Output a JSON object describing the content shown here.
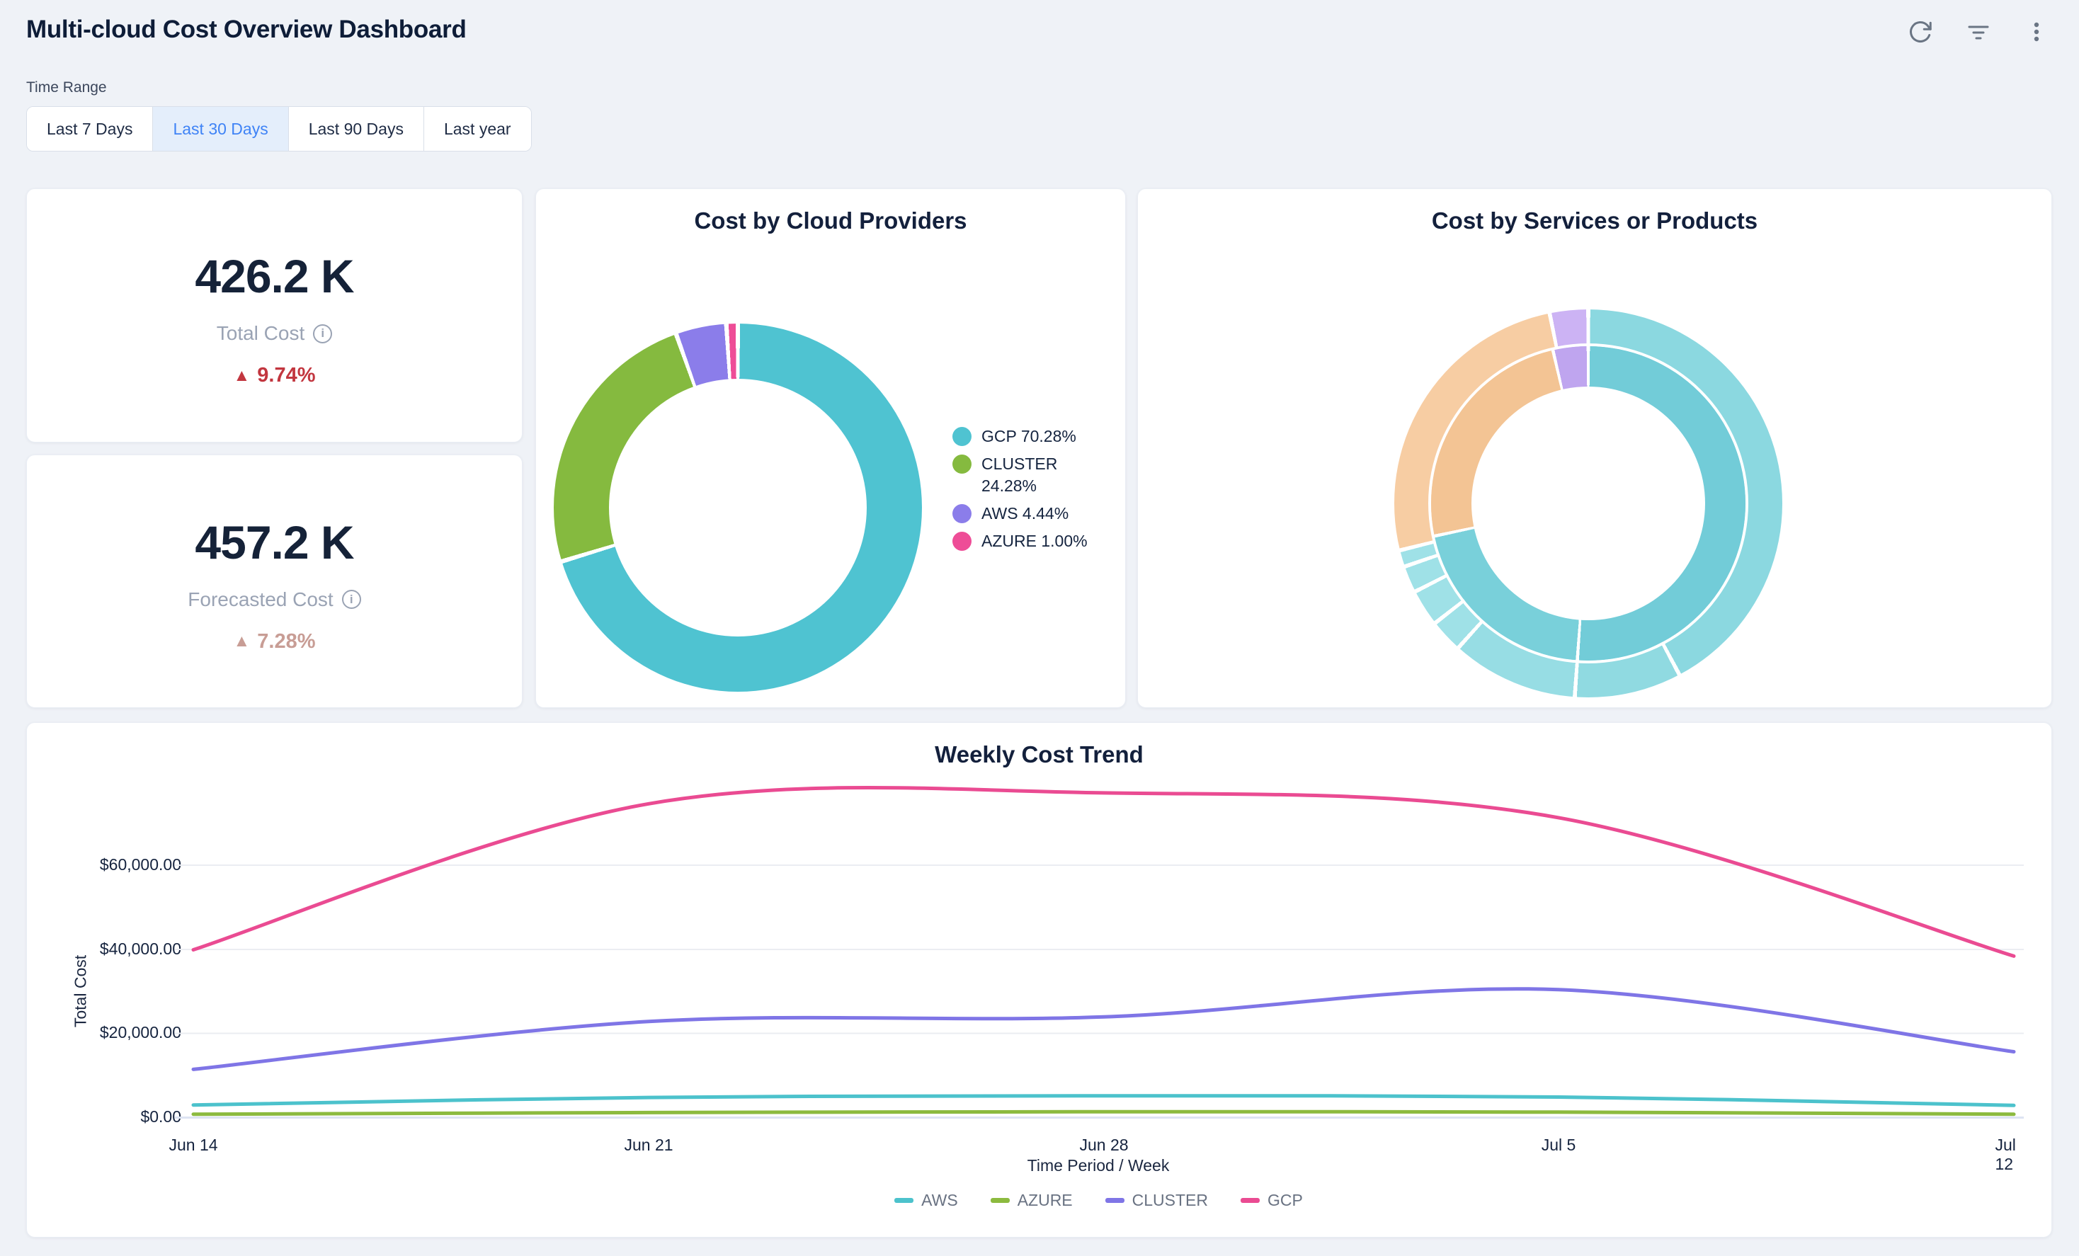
{
  "header": {
    "title": "Multi-cloud Cost Overview Dashboard",
    "actions": [
      {
        "name": "refresh"
      },
      {
        "name": "filter"
      },
      {
        "name": "more"
      }
    ]
  },
  "time_range": {
    "label": "Time Range",
    "options": [
      {
        "label": "Last 7 Days",
        "selected": false
      },
      {
        "label": "Last 30 Days",
        "selected": true
      },
      {
        "label": "Last 90 Days",
        "selected": false
      },
      {
        "label": "Last year",
        "selected": false
      }
    ]
  },
  "kpis": [
    {
      "value": "426.2 K",
      "label": "Total Cost",
      "delta": "9.74%",
      "trend": "up",
      "delta_color": "#c2363f"
    },
    {
      "value": "457.2 K",
      "label": "Forecasted Cost",
      "delta": "7.28%",
      "trend": "up",
      "delta_color": "#c89d95"
    }
  ],
  "chart_data": [
    {
      "type": "pie",
      "subtype": "donut",
      "title": "Cost by Cloud Providers",
      "labels": [
        "GCP",
        "CLUSTER",
        "AWS",
        "AZURE"
      ],
      "values": [
        70.28,
        24.28,
        4.44,
        1.0
      ],
      "unit": "percent",
      "colors": [
        "#4fc3d1",
        "#85ba3f",
        "#8b7dea",
        "#ee4d97"
      ],
      "legend": [
        "GCP 70.28%",
        "CLUSTER 24.28%",
        "AWS 4.44%",
        "AZURE 1.00%"
      ],
      "legend_position": "right"
    },
    {
      "type": "pie",
      "subtype": "sunburst",
      "title": "Cost by Services or Products",
      "rings": {
        "outer": [
          {
            "start": 0,
            "end": 152,
            "color": "#8bd8e0"
          },
          {
            "start": 152,
            "end": 184,
            "color": "#90dae1"
          },
          {
            "start": 184,
            "end": 222,
            "color": "#97dde4"
          },
          {
            "start": 222,
            "end": 232,
            "color": "#9fe1e7"
          },
          {
            "start": 232,
            "end": 243,
            "color": "#9fe1e7"
          },
          {
            "start": 243,
            "end": 251,
            "color": "#9fe1e7"
          },
          {
            "start": 251,
            "end": 256,
            "color": "#9fe1e7"
          },
          {
            "start": 256,
            "end": 348.5,
            "color": "#f7cda3"
          },
          {
            "start": 348.5,
            "end": 360,
            "color": "#ccb3f4"
          }
        ],
        "inner": [
          {
            "start": 0,
            "end": 184,
            "color": "#72ccd8"
          },
          {
            "start": 184,
            "end": 258,
            "color": "#79d0da"
          },
          {
            "start": 258,
            "end": 347,
            "color": "#f3c494"
          },
          {
            "start": 347,
            "end": 360,
            "color": "#bfa5ef"
          }
        ]
      }
    },
    {
      "type": "line",
      "title": "Weekly Cost Trend",
      "x": [
        "Jun 14",
        "Jun 21",
        "Jun 28",
        "Jul 5",
        "Jul 12"
      ],
      "xlabel": "Time Period / Week",
      "ylabel": "Total Cost",
      "y_ticks": [
        "$0.00",
        "$20,000.00",
        "$40,000.00",
        "$60,000.00"
      ],
      "ylim": [
        0,
        80000
      ],
      "grid": true,
      "legend_position": "bottom",
      "series": [
        {
          "name": "AWS",
          "color": "#4cc2cc",
          "values": [
            3000,
            4800,
            5200,
            4900,
            2900
          ]
        },
        {
          "name": "AZURE",
          "color": "#8cba3f",
          "values": [
            800,
            1200,
            1400,
            1300,
            800
          ]
        },
        {
          "name": "CLUSTER",
          "color": "#7f75e6",
          "values": [
            11500,
            22900,
            24000,
            30500,
            15700
          ]
        },
        {
          "name": "GCP",
          "color": "#ea4b92",
          "values": [
            40000,
            74800,
            77400,
            71500,
            38500
          ]
        }
      ]
    }
  ],
  "colors": {
    "page_bg": "#eff2f7",
    "accent_blue": "#3f83f6",
    "title_navy": "#0e1d38",
    "muted_gray": "#9aa3b4",
    "delta_red": "#c2363f",
    "delta_rose": "#c89d95"
  }
}
